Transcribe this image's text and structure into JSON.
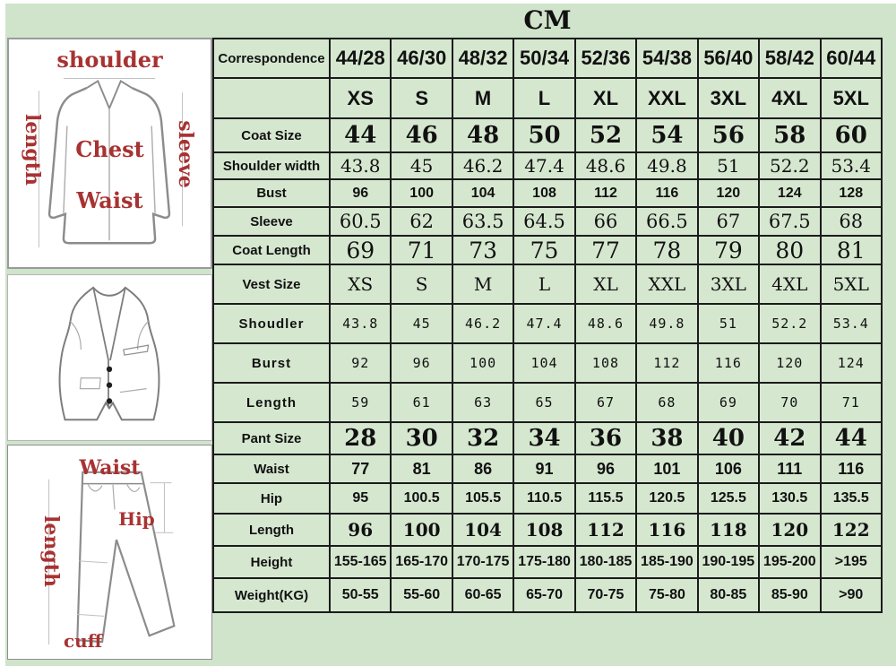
{
  "title": "CM",
  "jacket_diagram": {
    "shoulder": "shoulder",
    "length": "length",
    "sleeve": "sleeve",
    "chest": "Chest",
    "waist": "Waist"
  },
  "pants_diagram": {
    "waist": "Waist",
    "length": "length",
    "hip": "Hip",
    "cuff": "cuff"
  },
  "table": {
    "rows": [
      {
        "key": "correspondence",
        "label": "Correspondence",
        "values": [
          "44/28",
          "46/30",
          "48/32",
          "50/34",
          "52/36",
          "54/38",
          "56/40",
          "58/42",
          "60/44"
        ]
      },
      {
        "key": "sizes",
        "label": "",
        "values": [
          "XS",
          "S",
          "M",
          "L",
          "XL",
          "XXL",
          "3XL",
          "4XL",
          "5XL"
        ]
      },
      {
        "key": "coat-size",
        "label": "Coat Size",
        "values": [
          "44",
          "46",
          "48",
          "50",
          "52",
          "54",
          "56",
          "58",
          "60"
        ]
      },
      {
        "key": "shoulder-width",
        "label": "Shoulder width",
        "values": [
          "43.8",
          "45",
          "46.2",
          "47.4",
          "48.6",
          "49.8",
          "51",
          "52.2",
          "53.4"
        ]
      },
      {
        "key": "bust",
        "label": "Bust",
        "values": [
          "96",
          "100",
          "104",
          "108",
          "112",
          "116",
          "120",
          "124",
          "128"
        ]
      },
      {
        "key": "sleeve",
        "label": "Sleeve",
        "values": [
          "60.5",
          "62",
          "63.5",
          "64.5",
          "66",
          "66.5",
          "67",
          "67.5",
          "68"
        ]
      },
      {
        "key": "coat-length",
        "label": "Coat Length",
        "values": [
          "69",
          "71",
          "73",
          "75",
          "77",
          "78",
          "79",
          "80",
          "81"
        ]
      },
      {
        "key": "vest-size",
        "label": "Vest Size",
        "values": [
          "XS",
          "S",
          "M",
          "L",
          "XL",
          "XXL",
          "3XL",
          "4XL",
          "5XL"
        ]
      },
      {
        "key": "vest-shoudler",
        "label": "Shoudler",
        "values": [
          "43.8",
          "45",
          "46.2",
          "47.4",
          "48.6",
          "49.8",
          "51",
          "52.2",
          "53.4"
        ]
      },
      {
        "key": "vest-burst",
        "label": "Burst",
        "values": [
          "92",
          "96",
          "100",
          "104",
          "108",
          "112",
          "116",
          "120",
          "124"
        ]
      },
      {
        "key": "vest-length",
        "label": "Length",
        "values": [
          "59",
          "61",
          "63",
          "65",
          "67",
          "68",
          "69",
          "70",
          "71"
        ]
      },
      {
        "key": "pant-size",
        "label": "Pant Size",
        "values": [
          "28",
          "30",
          "32",
          "34",
          "36",
          "38",
          "40",
          "42",
          "44"
        ]
      },
      {
        "key": "waist",
        "label": "Waist",
        "values": [
          "77",
          "81",
          "86",
          "91",
          "96",
          "101",
          "106",
          "111",
          "116"
        ]
      },
      {
        "key": "hip",
        "label": "Hip",
        "values": [
          "95",
          "100.5",
          "105.5",
          "110.5",
          "115.5",
          "120.5",
          "125.5",
          "130.5",
          "135.5"
        ]
      },
      {
        "key": "pant-length",
        "label": "Length",
        "values": [
          "96",
          "100",
          "104",
          "108",
          "112",
          "116",
          "118",
          "120",
          "122"
        ]
      },
      {
        "key": "height",
        "label": "Height",
        "values": [
          "155-165",
          "165-170",
          "170-175",
          "175-180",
          "180-185",
          "185-190",
          "190-195",
          "195-200",
          ">195"
        ]
      },
      {
        "key": "weight",
        "label": "Weight(KG)",
        "values": [
          "50-55",
          "55-60",
          "60-65",
          "65-70",
          "70-75",
          "75-80",
          "80-85",
          "85-90",
          ">90"
        ]
      }
    ]
  },
  "colors": {
    "background_green": "#cfe4cb",
    "cell_green": "#d6e7d0",
    "vest_cell_green": "#e0edda",
    "fit_cell_green": "#d9ead2",
    "coat_size_yellow": "#f1ee8e",
    "vest_size_orange": "#f4a97c",
    "pant_size_purple": "#c9a3e8",
    "size_text_red": "#cc2424",
    "correspondence_purple": "#9933aa",
    "fit_text_green": "#1d4f1d",
    "diagram_label_red": "#a83232"
  }
}
